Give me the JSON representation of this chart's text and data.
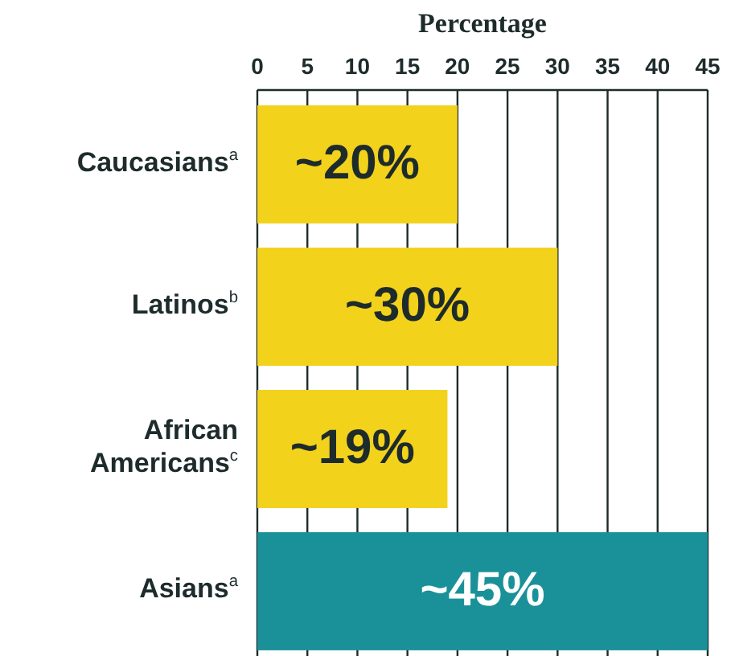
{
  "chart_data": {
    "type": "bar",
    "orientation": "horizontal",
    "xlabel": "Percentage",
    "categories": [
      "Caucasians$^{a}$",
      "Latinos$^{b}$",
      "African Americans$^{c}$",
      "Asians$^{a}$"
    ],
    "values": [
      20,
      30,
      19,
      45
    ],
    "colors": [
      "#f2d21b",
      "#f2d21b",
      "#f2d21b",
      "#1a9199"
    ],
    "value_labels": [
      "~20%",
      "~30%",
      "~19%",
      "~45%"
    ],
    "xlim": [
      0,
      45
    ],
    "xticks": [
      0,
      5,
      10,
      15,
      20,
      25,
      30,
      35,
      40,
      45
    ],
    "grid": "x"
  }
}
